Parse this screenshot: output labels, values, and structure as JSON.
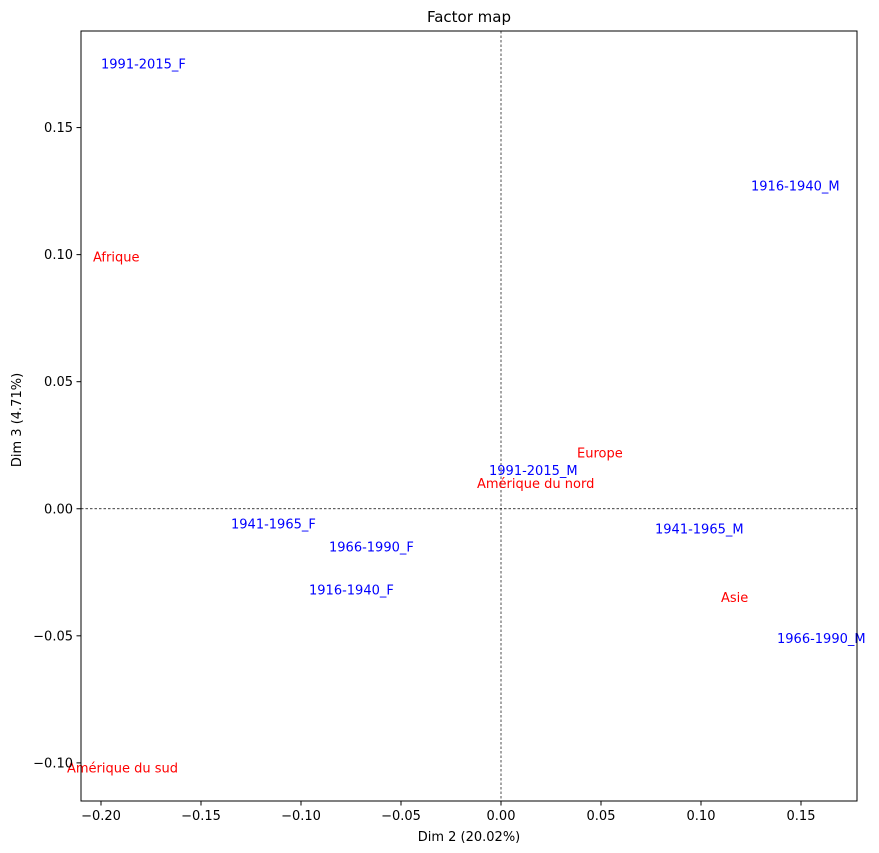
{
  "chart_data": {
    "type": "scatter",
    "title": "Factor map",
    "xlabel": "Dim 2 (20.02%)",
    "ylabel": "Dim 3 (4.71%)",
    "xlim": [
      -0.21,
      0.178
    ],
    "ylim": [
      -0.115,
      0.188
    ],
    "x_ticks": [
      -0.2,
      -0.15,
      -0.1,
      -0.05,
      0.0,
      0.05,
      0.1,
      0.15
    ],
    "x_tick_labels": [
      "−0.20",
      "−0.15",
      "−0.10",
      "−0.05",
      "0.00",
      "0.05",
      "0.10",
      "0.15"
    ],
    "y_ticks": [
      -0.1,
      -0.05,
      0.0,
      0.05,
      0.1,
      0.15
    ],
    "y_tick_labels": [
      "−0.10",
      "−0.05",
      "0.00",
      "0.05",
      "0.10",
      "0.15"
    ],
    "grid": false,
    "reference_lines": [
      0,
      0
    ],
    "series": [
      {
        "color": "#0000ff",
        "points": [
          {
            "label": "1991-2015_F",
            "x": -0.2,
            "y": 0.175
          },
          {
            "label": "1916-1940_M",
            "x": 0.125,
            "y": 0.127
          },
          {
            "label": "1991-2015_M",
            "x": -0.006,
            "y": 0.015
          },
          {
            "label": "1941-1965_F",
            "x": -0.135,
            "y": -0.006
          },
          {
            "label": "1941-1965_M",
            "x": 0.077,
            "y": -0.008
          },
          {
            "label": "1966-1990_F",
            "x": -0.086,
            "y": -0.015
          },
          {
            "label": "1916-1940_F",
            "x": -0.096,
            "y": -0.032
          },
          {
            "label": "1966-1990_M",
            "x": 0.138,
            "y": -0.051
          }
        ]
      },
      {
        "color": "#ff0000",
        "points": [
          {
            "label": "Afrique",
            "x": -0.204,
            "y": 0.099
          },
          {
            "label": "Europe",
            "x": 0.038,
            "y": 0.022
          },
          {
            "label": "Amérique du nord",
            "x": -0.012,
            "y": 0.01
          },
          {
            "label": "Asie",
            "x": 0.11,
            "y": -0.035
          },
          {
            "label": "Amérique du sud",
            "x": -0.217,
            "y": -0.102
          }
        ]
      }
    ]
  }
}
